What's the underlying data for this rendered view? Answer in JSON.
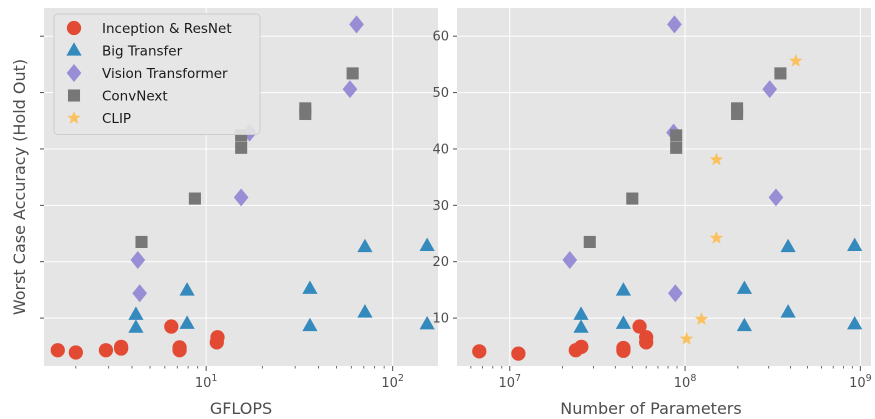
{
  "colors": {
    "panel_bg": "#e5e5e5",
    "grid": "#ffffff",
    "inception_resnet": "#e24a33",
    "big_transfer": "#348abd",
    "vision_transformer": "#988ed5",
    "convnext": "#777777",
    "clip": "#fbc15e"
  },
  "chart_data": [
    {
      "type": "scatter",
      "xlabel": "GFLOPS",
      "ylabel": "Worst Case Accuracy (Hold Out)",
      "xscale": "log",
      "xlim": [
        1.35,
        175
      ],
      "ylim": [
        1.5,
        65
      ],
      "grid": true,
      "legend_position": "top-left",
      "x_ticks": [
        10,
        100
      ],
      "x_tick_labels": [
        "10^1",
        "10^2"
      ],
      "y_ticks": [
        10,
        20,
        30,
        40,
        50,
        60
      ],
      "y_tick_labels": [
        "",
        "",
        "",
        "",
        "",
        ""
      ],
      "series": [
        {
          "name": "Inception & ResNet",
          "marker": "circle",
          "color": "#e24a33",
          "points": [
            [
              1.6,
              4.3
            ],
            [
              2.0,
              3.9
            ],
            [
              2.9,
              4.3
            ],
            [
              3.5,
              4.6
            ],
            [
              3.5,
              4.9
            ],
            [
              6.5,
              8.5
            ],
            [
              7.2,
              4.3
            ],
            [
              7.2,
              4.8
            ],
            [
              11.4,
              5.7
            ],
            [
              11.5,
              6.6
            ]
          ]
        },
        {
          "name": "Big Transfer",
          "marker": "triangle",
          "color": "#348abd",
          "points": [
            [
              4.2,
              8.3
            ],
            [
              4.2,
              10.6
            ],
            [
              7.9,
              9.0
            ],
            [
              7.9,
              14.9
            ],
            [
              36,
              8.6
            ],
            [
              36,
              15.2
            ],
            [
              71,
              11.0
            ],
            [
              71,
              22.6
            ],
            [
              153,
              8.9
            ],
            [
              153,
              22.8
            ]
          ]
        },
        {
          "name": "Vision Transformer",
          "marker": "diamond",
          "color": "#988ed5",
          "points": [
            [
              4.3,
              20.3
            ],
            [
              4.4,
              14.4
            ],
            [
              15.4,
              31.4
            ],
            [
              17.1,
              42.9
            ],
            [
              59,
              50.6
            ],
            [
              64,
              62.1
            ]
          ]
        },
        {
          "name": "ConvNext",
          "marker": "square",
          "color": "#777777",
          "points": [
            [
              4.5,
              23.5
            ],
            [
              8.7,
              31.2
            ],
            [
              15.4,
              40.2
            ],
            [
              15.4,
              42.4
            ],
            [
              34,
              46.2
            ],
            [
              34,
              47.2
            ],
            [
              61,
              53.4
            ]
          ]
        }
      ]
    },
    {
      "type": "scatter",
      "xlabel": "Number of Parameters",
      "ylabel": "",
      "xscale": "log",
      "xlim": [
        5000000,
        1150000000
      ],
      "ylim": [
        1.5,
        65
      ],
      "grid": true,
      "x_ticks": [
        10000000,
        100000000,
        1000000000
      ],
      "x_tick_labels": [
        "10^7",
        "10^8",
        "10^9"
      ],
      "y_ticks": [
        10,
        20,
        30,
        40,
        50,
        60
      ],
      "y_tick_labels": [
        "10",
        "20",
        "30",
        "40",
        "50",
        "60"
      ],
      "series": [
        {
          "name": "Inception & ResNet",
          "marker": "circle",
          "color": "#e24a33",
          "points": [
            [
              6700000,
              4.1
            ],
            [
              11200000,
              3.7
            ],
            [
              23800000,
              4.3
            ],
            [
              25600000,
              4.9
            ],
            [
              44500000,
              4.2
            ],
            [
              44500000,
              4.7
            ],
            [
              55000000,
              8.5
            ],
            [
              60000000,
              5.7
            ],
            [
              60000000,
              6.6
            ]
          ]
        },
        {
          "name": "Big Transfer",
          "marker": "triangle",
          "color": "#348abd",
          "points": [
            [
              25500000,
              8.3
            ],
            [
              25500000,
              10.6
            ],
            [
              44500000,
              9.0
            ],
            [
              44500000,
              14.9
            ],
            [
              218000000,
              8.6
            ],
            [
              218000000,
              15.2
            ],
            [
              387000000,
              11.0
            ],
            [
              387000000,
              22.6
            ],
            [
              928000000,
              8.9
            ],
            [
              928000000,
              22.8
            ]
          ]
        },
        {
          "name": "Vision Transformer",
          "marker": "diamond",
          "color": "#988ed5",
          "points": [
            [
              22000000,
              20.3
            ],
            [
              87000000,
              62.1
            ],
            [
              86000000,
              42.9
            ],
            [
              88000000,
              14.4
            ],
            [
              304000000,
              50.6
            ],
            [
              330000000,
              31.4
            ]
          ]
        },
        {
          "name": "ConvNext",
          "marker": "square",
          "color": "#777777",
          "points": [
            [
              28600000,
              23.5
            ],
            [
              50000000,
              31.2
            ],
            [
              89000000,
              40.2
            ],
            [
              89000000,
              42.4
            ],
            [
              198000000,
              46.2
            ],
            [
              198000000,
              47.2
            ],
            [
              350000000,
              53.4
            ]
          ]
        },
        {
          "name": "CLIP",
          "marker": "star",
          "color": "#fbc15e",
          "points": [
            [
              102000000,
              6.3
            ],
            [
              124000000,
              9.8
            ],
            [
              151000000,
              24.2
            ],
            [
              151000000,
              38.1
            ],
            [
              428000000,
              55.6
            ]
          ]
        }
      ]
    }
  ],
  "legend": {
    "items": [
      {
        "label": "Inception & ResNet",
        "marker": "circle",
        "color": "#e24a33"
      },
      {
        "label": "Big Transfer",
        "marker": "triangle",
        "color": "#348abd"
      },
      {
        "label": "Vision Transformer",
        "marker": "diamond",
        "color": "#988ed5"
      },
      {
        "label": "ConvNext",
        "marker": "square",
        "color": "#777777"
      },
      {
        "label": "CLIP",
        "marker": "star",
        "color": "#fbc15e"
      }
    ]
  }
}
